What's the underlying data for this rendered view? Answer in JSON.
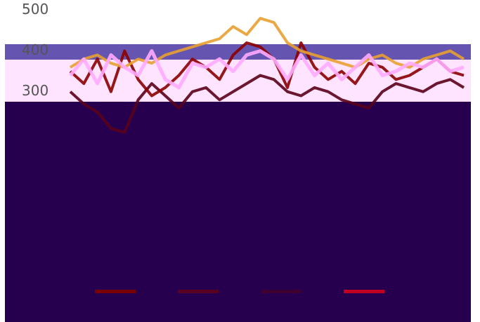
{
  "chart_data": {
    "type": "line",
    "categories": [
      null,
      null,
      null,
      null,
      null,
      null,
      null,
      null,
      null,
      null,
      null,
      null,
      null,
      null,
      null,
      null,
      null,
      null,
      null,
      null,
      null,
      null,
      null,
      null,
      null,
      null,
      null,
      null,
      null,
      null
    ],
    "series": [
      {
        "color": "#5a0018",
        "values": [
          300,
          270,
          250,
          210,
          200,
          280,
          320,
          290,
          260,
          300,
          310,
          280,
          300,
          320,
          340,
          330,
          300,
          290,
          310,
          300,
          280,
          270,
          260,
          300,
          320,
          310,
          300,
          320,
          330,
          310
        ]
      },
      {
        "color": "#8b0000",
        "values": [
          350,
          320,
          380,
          300,
          400,
          330,
          290,
          310,
          340,
          380,
          360,
          330,
          390,
          420,
          410,
          380,
          310,
          420,
          360,
          330,
          350,
          320,
          370,
          360,
          330,
          340,
          360,
          380,
          350,
          340
        ]
      },
      {
        "color": "#e8a030",
        "values": [
          360,
          380,
          390,
          370,
          360,
          380,
          370,
          390,
          400,
          410,
          420,
          430,
          460,
          440,
          480,
          470,
          420,
          400,
          390,
          380,
          370,
          360,
          380,
          390,
          370,
          360,
          380,
          390,
          400,
          380
        ]
      },
      {
        "color": "#ffaaff",
        "values": [
          340,
          380,
          320,
          390,
          360,
          340,
          400,
          330,
          310,
          370,
          360,
          380,
          350,
          390,
          400,
          380,
          330,
          390,
          340,
          370,
          330,
          360,
          390,
          340,
          350,
          370,
          360,
          380,
          350,
          360
        ]
      }
    ],
    "legend_colors": [
      "#7a0000",
      "#5a0020",
      "#3d0030",
      "#c00020"
    ],
    "ylim": [
      -265,
      525
    ],
    "yticks": [
      300,
      400,
      500
    ]
  }
}
